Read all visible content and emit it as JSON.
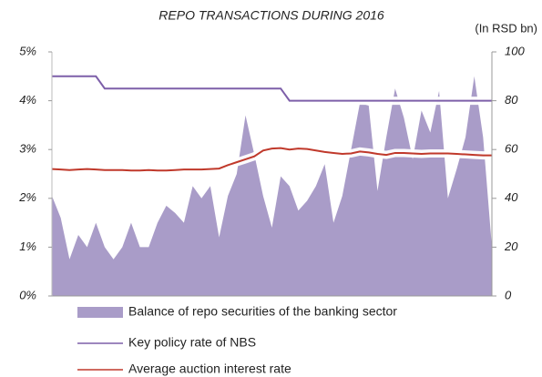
{
  "chart_data": {
    "type": "line",
    "title": "REPO TRANSACTIONS DURING 2016",
    "y2_label": "(In RSD bn)",
    "ylim": [
      0,
      5
    ],
    "yticks": [
      {
        "value": 0,
        "label": "0%"
      },
      {
        "value": 1,
        "label": "1%"
      },
      {
        "value": 2,
        "label": "2%"
      },
      {
        "value": 3,
        "label": "3%"
      },
      {
        "value": 4,
        "label": "4%"
      },
      {
        "value": 5,
        "label": "5%"
      }
    ],
    "y2lim": [
      0,
      100
    ],
    "y2ticks": [
      0,
      20,
      40,
      60,
      80,
      100
    ],
    "series": [
      {
        "name": "Balance of repo securities of the banking sector",
        "type": "area",
        "axis": "y2",
        "color": "#a99cc8",
        "values": [
          41,
          32,
          15,
          25,
          20,
          30,
          20,
          15,
          20,
          30,
          20,
          20,
          30,
          37,
          34,
          30,
          45,
          40,
          45,
          24,
          41,
          50,
          74,
          58,
          41,
          28,
          49,
          45,
          35,
          39,
          45,
          54,
          30,
          41,
          60,
          79,
          78,
          43,
          65,
          85,
          73,
          56,
          76,
          67,
          84,
          40,
          52,
          65,
          90,
          65,
          20
        ]
      },
      {
        "name": "Key policy rate of NBS",
        "type": "line",
        "color": "#7d5fa9",
        "values": [
          4.5,
          4.5,
          4.5,
          4.5,
          4.5,
          4.5,
          4.25,
          4.25,
          4.25,
          4.25,
          4.25,
          4.25,
          4.25,
          4.25,
          4.25,
          4.25,
          4.25,
          4.25,
          4.25,
          4.25,
          4.25,
          4.25,
          4.25,
          4.25,
          4.25,
          4.25,
          4.25,
          4.0,
          4.0,
          4.0,
          4.0,
          4.0,
          4.0,
          4.0,
          4.0,
          4.0,
          4.0,
          4.0,
          4.0,
          4.0,
          4.0,
          4.0,
          4.0,
          4.0,
          4.0,
          4.0,
          4.0,
          4.0,
          4.0,
          4.0,
          4.0
        ]
      },
      {
        "name": "Average  auction interest rate",
        "type": "line",
        "color": "#c0392b",
        "values": [
          2.6,
          2.59,
          2.58,
          2.59,
          2.6,
          2.59,
          2.58,
          2.58,
          2.58,
          2.57,
          2.57,
          2.58,
          2.57,
          2.57,
          2.58,
          2.59,
          2.59,
          2.59,
          2.6,
          2.61,
          2.68,
          2.74,
          2.8,
          2.86,
          2.98,
          3.02,
          3.03,
          3.0,
          3.02,
          3.01,
          2.98,
          2.95,
          2.93,
          2.91,
          2.92,
          2.96,
          2.94,
          2.91,
          2.89,
          2.93,
          2.93,
          2.92,
          2.91,
          2.92,
          2.92,
          2.92,
          2.91,
          2.9,
          2.89,
          2.88,
          2.88
        ]
      }
    ]
  }
}
